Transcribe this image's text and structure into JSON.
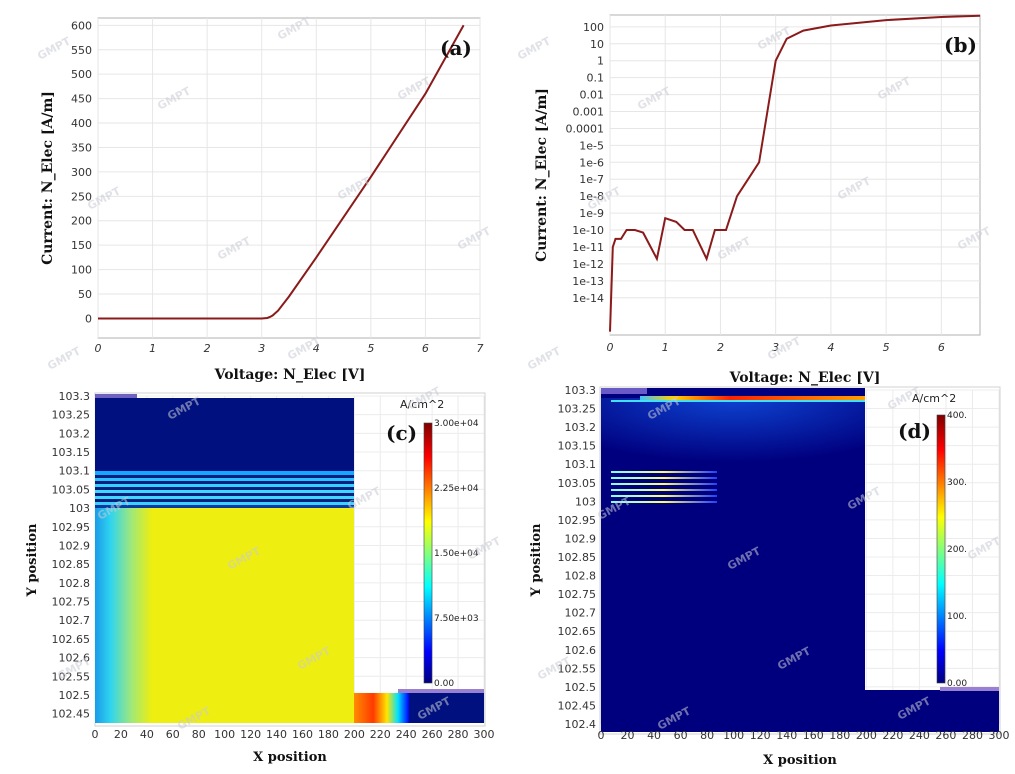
{
  "chart_data": [
    {
      "id": "a",
      "type": "line",
      "panel_label": "(a)",
      "xlabel": "Voltage: N_Elec [V]",
      "ylabel": "Current: N_Elec [A/m]",
      "xlim": [
        0,
        7
      ],
      "ylim": [
        -40,
        615
      ],
      "xticks": [
        "0",
        "1",
        "2",
        "3",
        "4",
        "5",
        "6",
        "7"
      ],
      "yticks": [
        "0",
        "50",
        "100",
        "150",
        "200",
        "250",
        "300",
        "350",
        "400",
        "450",
        "500",
        "550",
        "600"
      ],
      "color": "#8b1a1a",
      "x": [
        0,
        1,
        2,
        3,
        3.1,
        3.15,
        3.2,
        3.3,
        3.5,
        4,
        5,
        6,
        6.7
      ],
      "y": [
        0,
        0,
        0,
        0,
        1,
        3,
        6,
        16,
        45,
        125,
        290,
        460,
        600
      ]
    },
    {
      "id": "b",
      "type": "line",
      "scale_y": "log",
      "panel_label": "(b)",
      "xlabel": "Voltage: N_Elec [V]",
      "ylabel": "Current: N_Elec [A/m]",
      "xlim": [
        0,
        6.7
      ],
      "ylim_exp": [
        -16.2,
        2.7
      ],
      "xticks": [
        "0",
        "1",
        "2",
        "3",
        "4",
        "5",
        "6"
      ],
      "yticks": [
        "100",
        "10",
        "1",
        "0.1",
        "0.01",
        "0.001",
        "0.0001",
        "1e-5",
        "1e-6",
        "1e-7",
        "1e-8",
        "1e-9",
        "1e-10",
        "1e-11",
        "1e-12",
        "1e-13",
        "1e-14"
      ],
      "color": "#8b1a1a",
      "x": [
        0,
        0.05,
        0.1,
        0.2,
        0.3,
        0.45,
        0.6,
        0.85,
        1.0,
        1.2,
        1.35,
        1.5,
        1.75,
        1.9,
        2.1,
        2.3,
        2.5,
        2.7,
        2.85,
        3.0,
        3.2,
        3.5,
        4,
        5,
        6,
        6.7
      ],
      "y": [
        1e-16,
        1e-11,
        3e-11,
        3e-11,
        1e-10,
        1e-10,
        7e-11,
        2e-12,
        5e-10,
        3e-10,
        1e-10,
        1e-10,
        2e-12,
        1e-10,
        1e-10,
        1e-08,
        1e-07,
        1e-06,
        0.001,
        1,
        20,
        60,
        120,
        250,
        380,
        450
      ]
    },
    {
      "id": "c",
      "type": "heatmap",
      "panel_label": "(c)",
      "xlabel": "X position",
      "ylabel": "Y position",
      "xlim": [
        0,
        300
      ],
      "ylim": [
        102.425,
        103.3
      ],
      "xticks": [
        "0",
        "20",
        "40",
        "60",
        "80",
        "100",
        "120",
        "140",
        "160",
        "180",
        "200",
        "220",
        "240",
        "260",
        "280",
        "300"
      ],
      "yticks": [
        "103.3",
        "103.25",
        "103.2",
        "103.15",
        "103.1",
        "103.05",
        "103",
        "102.95",
        "102.9",
        "102.85",
        "102.8",
        "102.75",
        "102.7",
        "102.65",
        "102.6",
        "102.55",
        "102.5",
        "102.45"
      ],
      "colorbar": {
        "title": "A/cm^2",
        "labels": [
          "3.00e+04",
          "2.25e+04",
          "1.50e+04",
          "7.50e+03",
          "0.00"
        ],
        "min": 0,
        "max": 30000
      }
    },
    {
      "id": "d",
      "type": "heatmap",
      "panel_label": "(d)",
      "xlabel": "X position",
      "ylabel": "Y position",
      "xlim": [
        0,
        300
      ],
      "ylim": [
        102.4,
        103.3
      ],
      "xticks": [
        "0",
        "20",
        "40",
        "60",
        "80",
        "100",
        "120",
        "140",
        "160",
        "180",
        "200",
        "220",
        "240",
        "260",
        "280",
        "300"
      ],
      "yticks": [
        "103.3",
        "103.25",
        "103.2",
        "103.15",
        "103.1",
        "103.05",
        "103",
        "102.95",
        "102.9",
        "102.85",
        "102.8",
        "102.75",
        "102.7",
        "102.65",
        "102.6",
        "102.55",
        "102.5",
        "102.45",
        "102.4"
      ],
      "colorbar": {
        "title": "A/cm^2",
        "labels": [
          "400.",
          "300.",
          "200.",
          "100.",
          "0.00"
        ],
        "min": 0,
        "max": 400
      }
    }
  ],
  "watermark": "GMPT",
  "colors": {
    "curve": "#8b1a1a",
    "low": "#00007f",
    "high": "#e8e800",
    "colormap": [
      "#00007f",
      "#0000ff",
      "#00ffff",
      "#ffff00",
      "#ff0000",
      "#7f0000"
    ]
  }
}
